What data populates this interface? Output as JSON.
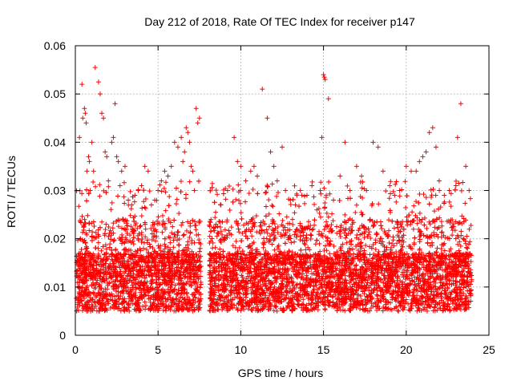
{
  "chart_data": {
    "type": "scatter",
    "title": "Day 212 of 2018, Rate Of TEC Index for receiver p147",
    "xlabel": "GPS time / hours",
    "ylabel": "ROTI / TECUs",
    "xlim": [
      0,
      24
    ],
    "ylim": [
      0,
      0.06
    ],
    "x_ticks": [
      "0",
      "5",
      "10",
      "15",
      "20",
      "25"
    ],
    "x_tick_values": [
      0,
      5,
      10,
      15,
      20,
      25
    ],
    "y_ticks": [
      "0",
      "0.01",
      "0.02",
      "0.03",
      "0.04",
      "0.05",
      "0.06"
    ],
    "y_tick_values": [
      0,
      0.01,
      0.02,
      0.03,
      0.04,
      0.05,
      0.06
    ],
    "grid": true,
    "marker": "+",
    "color": "#ff0000",
    "gap_hours": [
      7.6,
      8.1
    ],
    "series": [
      {
        "name": "ROTI",
        "x": [
          0.25,
          0.4,
          0.45,
          0.55,
          0.6,
          0.65,
          0.7,
          0.8,
          0.85,
          0.9,
          1.0,
          1.1,
          1.2,
          1.4,
          1.5,
          1.6,
          1.7,
          1.8,
          1.9,
          2.0,
          2.2,
          2.3,
          2.4,
          2.5,
          2.6,
          2.7,
          2.8,
          3.0,
          3.2,
          3.4,
          3.6,
          3.8,
          4.0,
          4.2,
          4.4,
          4.6,
          4.8,
          5.0,
          5.2,
          5.4,
          5.6,
          5.8,
          6.0,
          6.2,
          6.4,
          6.5,
          6.6,
          6.7,
          6.8,
          6.9,
          7.0,
          7.1,
          7.2,
          7.3,
          7.4,
          7.5,
          8.2,
          8.5,
          8.8,
          9.2,
          9.6,
          9.8,
          10.0,
          10.3,
          10.6,
          10.8,
          11.0,
          11.3,
          11.6,
          11.8,
          12.0,
          12.2,
          12.5,
          12.7,
          13.0,
          13.3,
          13.6,
          14.0,
          14.3,
          14.6,
          14.8,
          14.9,
          15.0,
          15.05,
          15.1,
          15.3,
          15.6,
          16.0,
          16.3,
          16.6,
          17.0,
          17.3,
          17.6,
          18.0,
          18.3,
          18.6,
          19.0,
          19.3,
          19.6,
          20.0,
          20.3,
          20.6,
          20.8,
          21.0,
          21.2,
          21.4,
          21.6,
          21.8,
          22.0,
          22.3,
          22.6,
          23.0,
          23.1,
          23.3,
          23.6,
          23.8
        ],
        "y": [
          0.041,
          0.052,
          0.045,
          0.047,
          0.046,
          0.044,
          0.034,
          0.037,
          0.036,
          0.03,
          0.04,
          0.034,
          0.0555,
          0.0525,
          0.05,
          0.046,
          0.045,
          0.038,
          0.037,
          0.032,
          0.04,
          0.041,
          0.048,
          0.037,
          0.036,
          0.031,
          0.034,
          0.035,
          0.028,
          0.027,
          0.029,
          0.03,
          0.031,
          0.035,
          0.034,
          0.027,
          0.028,
          0.03,
          0.032,
          0.034,
          0.033,
          0.035,
          0.04,
          0.039,
          0.041,
          0.036,
          0.038,
          0.043,
          0.042,
          0.04,
          0.035,
          0.034,
          0.03,
          0.047,
          0.044,
          0.045,
          0.024,
          0.023,
          0.027,
          0.03,
          0.041,
          0.036,
          0.035,
          0.032,
          0.034,
          0.035,
          0.033,
          0.051,
          0.045,
          0.038,
          0.035,
          0.032,
          0.039,
          0.03,
          0.028,
          0.027,
          0.03,
          0.029,
          0.031,
          0.026,
          0.03,
          0.041,
          0.054,
          0.0535,
          0.053,
          0.049,
          0.028,
          0.033,
          0.04,
          0.03,
          0.035,
          0.033,
          0.03,
          0.04,
          0.039,
          0.034,
          0.031,
          0.029,
          0.03,
          0.035,
          0.034,
          0.034,
          0.036,
          0.037,
          0.038,
          0.042,
          0.043,
          0.039,
          0.03,
          0.029,
          0.03,
          0.031,
          0.041,
          0.048,
          0.035,
          0.03
        ]
      }
    ]
  }
}
